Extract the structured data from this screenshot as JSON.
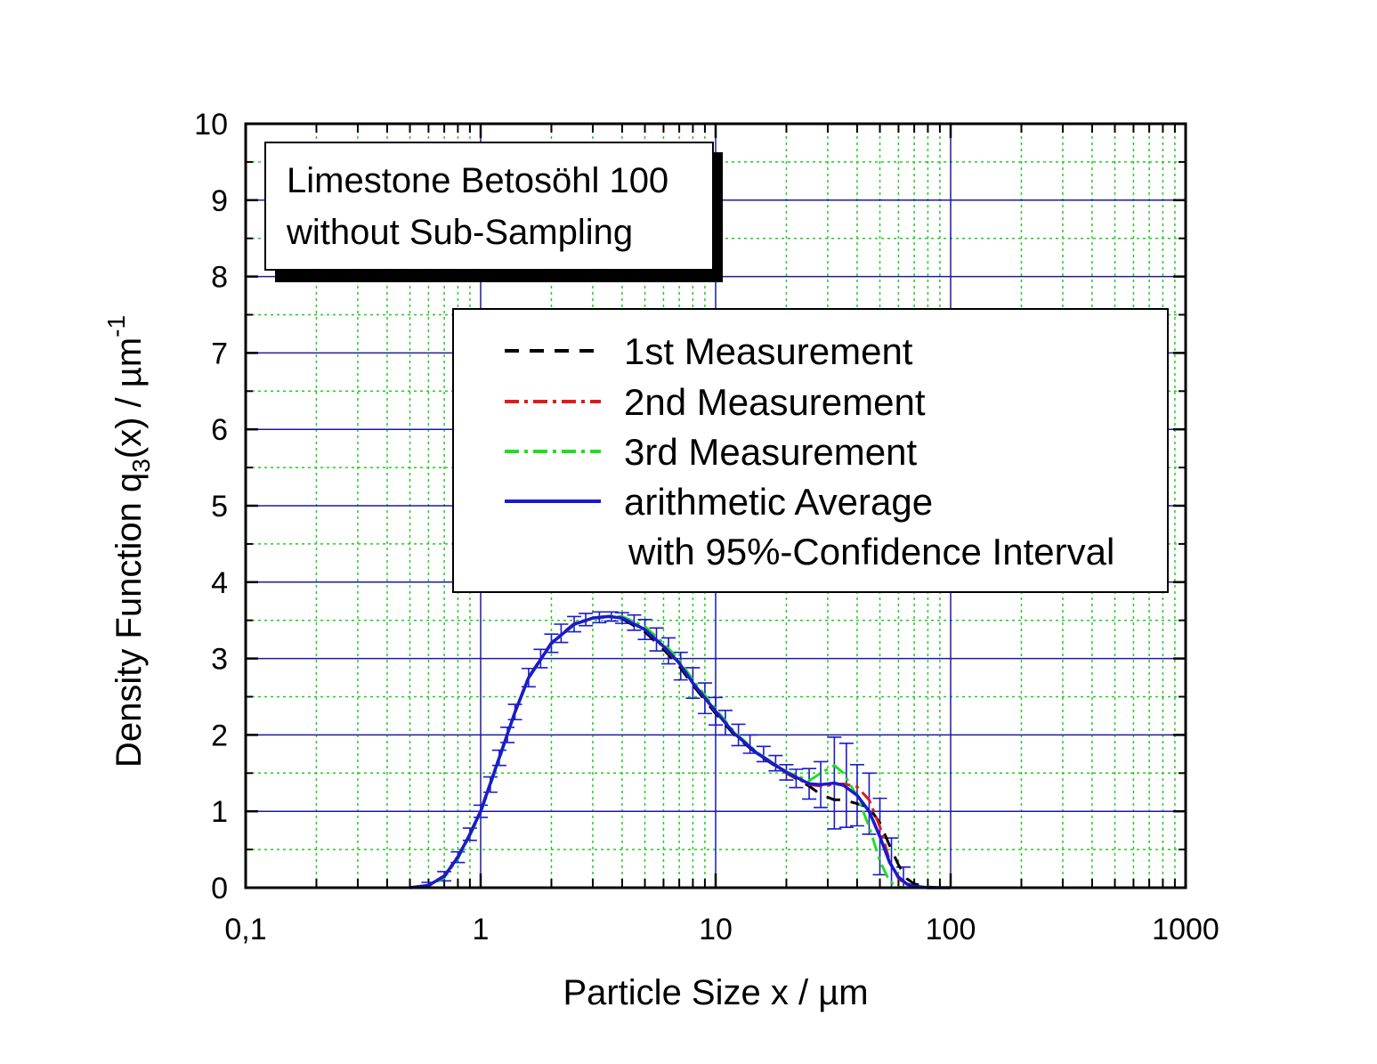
{
  "chart_data": {
    "type": "line",
    "xlabel": "Particle Size x / µm",
    "ylabel": {
      "main": "Density Function q",
      "sub": "3",
      "rest": "(x) / µm",
      "sup": "-1"
    },
    "x_scale": "log",
    "xlim": [
      0.1,
      1000
    ],
    "ylim": [
      0,
      10
    ],
    "x_ticks": [
      0.1,
      1,
      10,
      100,
      1000
    ],
    "x_tick_labels": [
      "0,1",
      "1",
      "10",
      "100",
      "1000"
    ],
    "y_ticks": [
      0,
      1,
      2,
      3,
      4,
      5,
      6,
      7,
      8,
      9,
      10
    ],
    "y_tick_labels": [
      "0",
      "1",
      "2",
      "3",
      "4",
      "5",
      "6",
      "7",
      "8",
      "9",
      "10"
    ],
    "grid": {
      "major": true,
      "minor": true,
      "major_color": "#1a1aa8",
      "minor_color": "#22cc22"
    },
    "annotation": [
      "Limestone Betosöhl 100",
      "without Sub-Sampling"
    ],
    "legend": {
      "position": "upper-right",
      "entries": [
        "1st Measurement",
        "2nd Measurement",
        "3rd Measurement",
        "arithmetic Average"
      ],
      "extra": "with 95%-Confidence Interval"
    },
    "series": [
      {
        "name": "1st Measurement",
        "color": "#000000",
        "style": "dash",
        "x": [
          0.5,
          0.6,
          0.7,
          0.8,
          0.9,
          1.0,
          1.2,
          1.4,
          1.6,
          2.0,
          2.5,
          3.0,
          3.5,
          4.0,
          5.0,
          6.0,
          7.0,
          8.0,
          10,
          12,
          15,
          20,
          25,
          28,
          32,
          35,
          40,
          45,
          50,
          55,
          60,
          65,
          70,
          80,
          90,
          100
        ],
        "y": [
          0,
          0.03,
          0.15,
          0.4,
          0.7,
          1.0,
          1.7,
          2.3,
          2.75,
          3.2,
          3.45,
          3.52,
          3.55,
          3.52,
          3.35,
          3.12,
          2.9,
          2.65,
          2.28,
          2.0,
          1.75,
          1.5,
          1.33,
          1.22,
          1.15,
          1.15,
          1.1,
          1.05,
          0.85,
          0.55,
          0.3,
          0.12,
          0.05,
          0.01,
          0,
          0
        ]
      },
      {
        "name": "2nd Measurement",
        "color": "#e01b1b",
        "style": "dashdot",
        "x": [
          0.5,
          0.6,
          0.7,
          0.8,
          0.9,
          1.0,
          1.2,
          1.4,
          1.6,
          2.0,
          2.5,
          3.0,
          3.5,
          4.0,
          5.0,
          6.0,
          7.0,
          8.0,
          10,
          12,
          15,
          20,
          25,
          28,
          32,
          35,
          40,
          45,
          50,
          55,
          60,
          65,
          70,
          80,
          90,
          100
        ],
        "y": [
          0,
          0.03,
          0.16,
          0.41,
          0.71,
          1.01,
          1.71,
          2.31,
          2.76,
          3.21,
          3.46,
          3.53,
          3.55,
          3.53,
          3.38,
          3.15,
          2.93,
          2.68,
          2.3,
          2.02,
          1.76,
          1.5,
          1.35,
          1.33,
          1.35,
          1.36,
          1.32,
          1.15,
          0.8,
          0.35,
          0.12,
          0.04,
          0.01,
          0,
          0,
          0
        ]
      },
      {
        "name": "3rd Measurement",
        "color": "#22dd22",
        "style": "dashdot",
        "x": [
          0.5,
          0.6,
          0.7,
          0.8,
          0.9,
          1.0,
          1.2,
          1.4,
          1.6,
          2.0,
          2.5,
          3.0,
          3.5,
          4.0,
          5.0,
          6.0,
          7.0,
          8.0,
          10,
          12,
          15,
          20,
          25,
          28,
          32,
          35,
          40,
          45,
          50,
          55,
          60,
          65,
          70,
          80,
          90,
          100
        ],
        "y": [
          0,
          0.02,
          0.13,
          0.38,
          0.68,
          0.98,
          1.68,
          2.29,
          2.74,
          3.19,
          3.44,
          3.53,
          3.56,
          3.55,
          3.42,
          3.2,
          2.98,
          2.72,
          2.34,
          2.04,
          1.77,
          1.52,
          1.4,
          1.5,
          1.6,
          1.5,
          1.2,
          0.8,
          0.35,
          0.08,
          0.01,
          0,
          0,
          0,
          0,
          0
        ]
      },
      {
        "name": "arithmetic Average",
        "color": "#1a1acc",
        "style": "solid",
        "x": [
          0.5,
          0.6,
          0.7,
          0.8,
          0.9,
          1.0,
          1.2,
          1.4,
          1.6,
          2.0,
          2.5,
          3.0,
          3.5,
          4.0,
          5.0,
          6.0,
          7.0,
          8.0,
          10,
          12,
          15,
          20,
          25,
          28,
          32,
          35,
          40,
          45,
          50,
          55,
          60,
          65,
          70,
          80,
          90,
          100
        ],
        "y": [
          0,
          0.03,
          0.15,
          0.4,
          0.7,
          1.0,
          1.7,
          2.3,
          2.75,
          3.2,
          3.45,
          3.53,
          3.55,
          3.53,
          3.38,
          3.16,
          2.94,
          2.68,
          2.31,
          2.02,
          1.76,
          1.51,
          1.36,
          1.35,
          1.37,
          1.34,
          1.21,
          1.0,
          0.67,
          0.33,
          0.14,
          0.05,
          0.02,
          0,
          0,
          0
        ]
      }
    ],
    "confidence_interval": {
      "x": [
        0.6,
        0.7,
        0.8,
        0.9,
        1.0,
        1.1,
        1.2,
        1.3,
        1.4,
        1.6,
        1.8,
        2.0,
        2.2,
        2.5,
        2.8,
        3.2,
        3.6,
        4.0,
        4.5,
        5.0,
        5.6,
        6.3,
        7.1,
        8.0,
        9.0,
        10,
        11,
        12.5,
        14,
        16,
        18,
        20,
        22,
        25,
        28,
        32,
        36,
        40,
        45,
        50,
        56,
        63
      ],
      "y": [
        0.03,
        0.15,
        0.4,
        0.7,
        1.0,
        1.35,
        1.7,
        2.0,
        2.3,
        2.75,
        3.0,
        3.2,
        3.33,
        3.45,
        3.51,
        3.54,
        3.55,
        3.53,
        3.47,
        3.38,
        3.25,
        3.1,
        2.9,
        2.68,
        2.48,
        2.31,
        2.16,
        2.0,
        1.88,
        1.75,
        1.63,
        1.51,
        1.43,
        1.36,
        1.35,
        1.37,
        1.34,
        1.21,
        1.1,
        0.67,
        0.3,
        0.12
      ],
      "half_width": [
        0.04,
        0.06,
        0.07,
        0.08,
        0.08,
        0.1,
        0.1,
        0.1,
        0.1,
        0.12,
        0.12,
        0.12,
        0.12,
        0.1,
        0.08,
        0.07,
        0.06,
        0.07,
        0.1,
        0.13,
        0.15,
        0.17,
        0.18,
        0.2,
        0.2,
        0.18,
        0.16,
        0.14,
        0.12,
        0.1,
        0.1,
        0.1,
        0.12,
        0.2,
        0.3,
        0.6,
        0.55,
        0.4,
        0.4,
        0.5,
        0.35,
        0.15
      ]
    }
  }
}
